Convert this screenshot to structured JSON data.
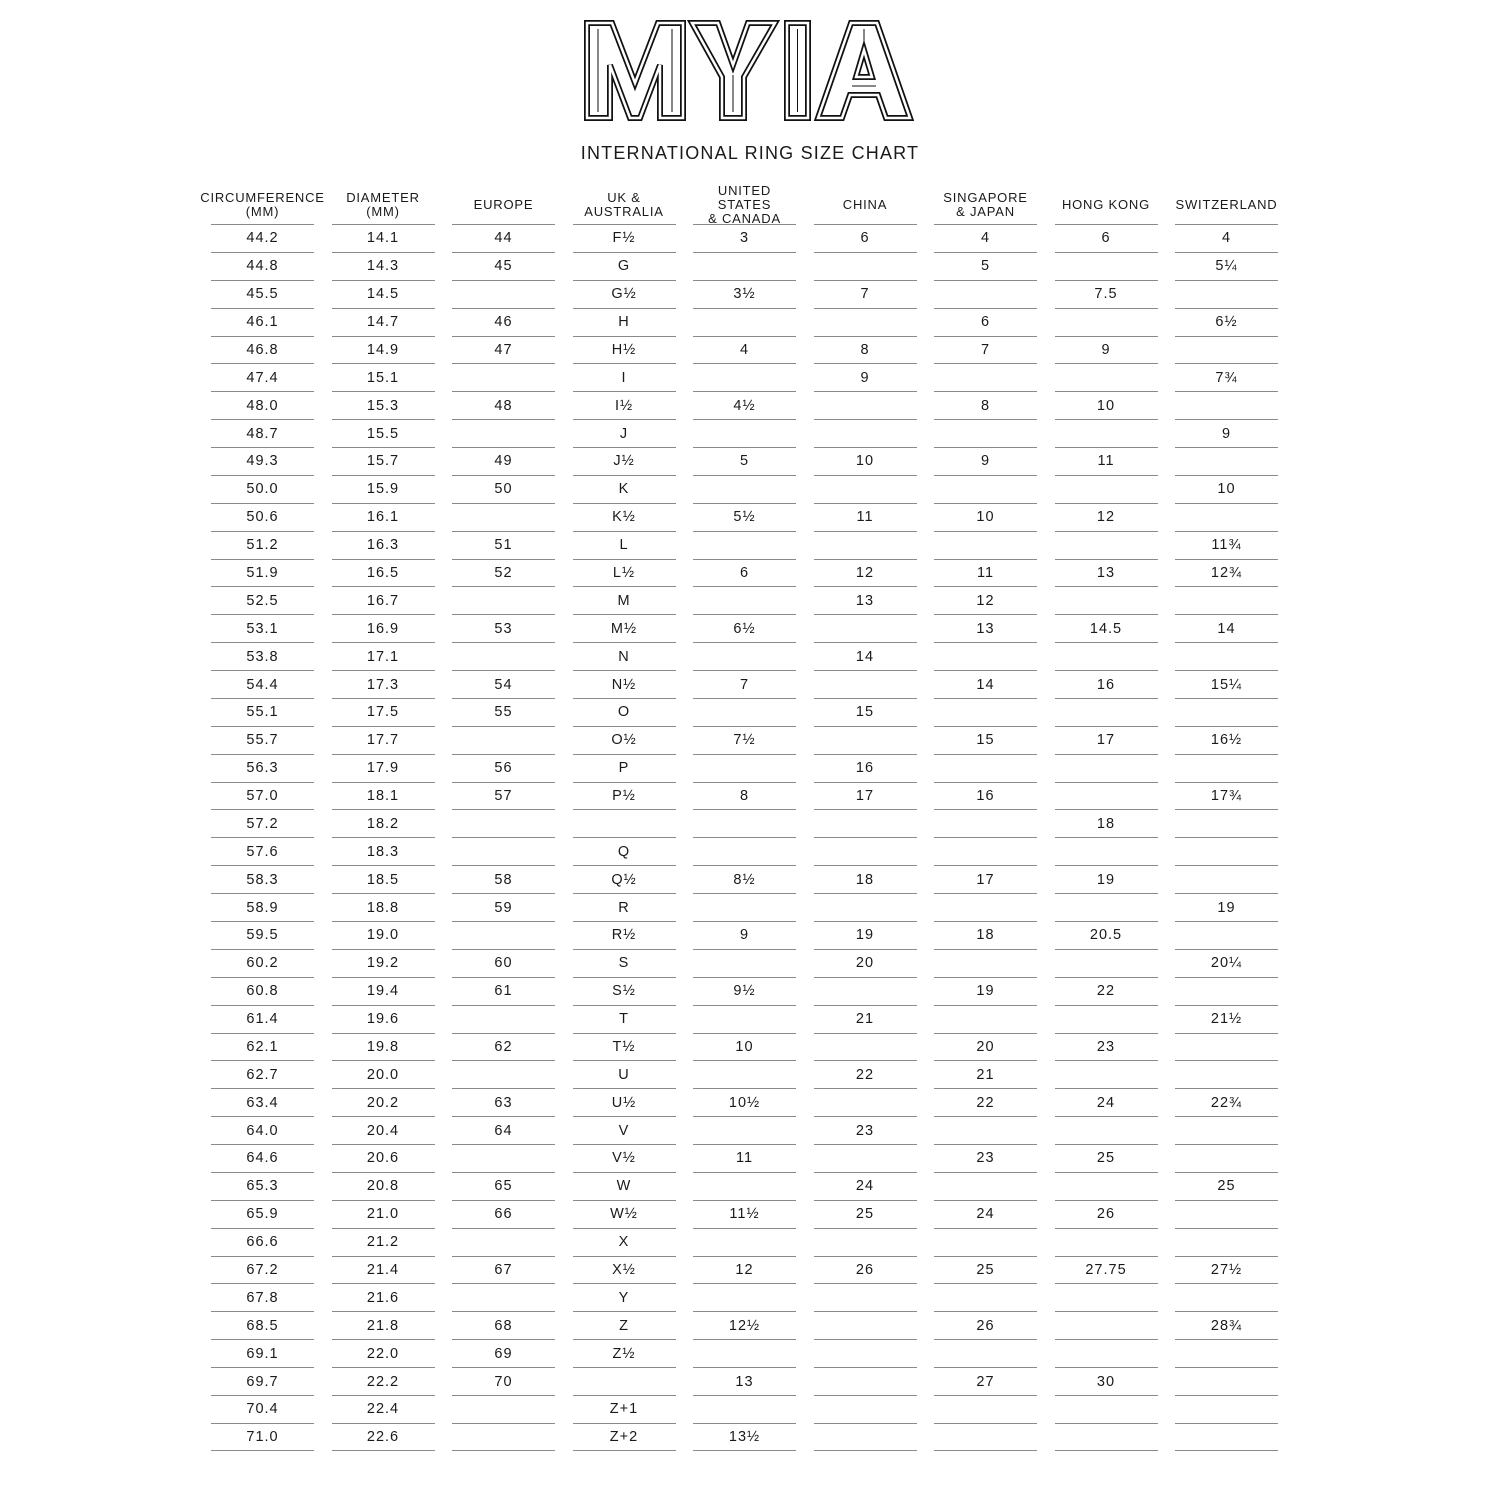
{
  "logo": {
    "text": "MYIA"
  },
  "title": "INTERNATIONAL RING SIZE CHART",
  "columns": [
    "CIRCUMFERENCE\n(MM)",
    "DIAMETER\n(MM)",
    "EUROPE",
    "UK &\nAUSTRALIA",
    "UNITED STATES\n& CANADA",
    "CHINA",
    "SINGAPORE\n& JAPAN",
    "HONG KONG",
    "SWITZERLAND"
  ],
  "rows": [
    [
      "44.2",
      "14.1",
      "44",
      "F½",
      "3",
      "6",
      "4",
      "6",
      "4"
    ],
    [
      "44.8",
      "14.3",
      "45",
      "G",
      "",
      "",
      "5",
      "",
      "5¼"
    ],
    [
      "45.5",
      "14.5",
      "",
      "G½",
      "3½",
      "7",
      "",
      "7.5",
      ""
    ],
    [
      "46.1",
      "14.7",
      "46",
      "H",
      "",
      "",
      "6",
      "",
      "6½"
    ],
    [
      "46.8",
      "14.9",
      "47",
      "H½",
      "4",
      "8",
      "7",
      "9",
      ""
    ],
    [
      "47.4",
      "15.1",
      "",
      "I",
      "",
      "9",
      "",
      "",
      "7¾"
    ],
    [
      "48.0",
      "15.3",
      "48",
      "I½",
      "4½",
      "",
      "8",
      "10",
      ""
    ],
    [
      "48.7",
      "15.5",
      "",
      "J",
      "",
      "",
      "",
      "",
      "9"
    ],
    [
      "49.3",
      "15.7",
      "49",
      "J½",
      "5",
      "10",
      "9",
      "11",
      ""
    ],
    [
      "50.0",
      "15.9",
      "50",
      "K",
      "",
      "",
      "",
      "",
      "10"
    ],
    [
      "50.6",
      "16.1",
      "",
      "K½",
      "5½",
      "11",
      "10",
      "12",
      ""
    ],
    [
      "51.2",
      "16.3",
      "51",
      "L",
      "",
      "",
      "",
      "",
      "11¾"
    ],
    [
      "51.9",
      "16.5",
      "52",
      "L½",
      "6",
      "12",
      "11",
      "13",
      "12¾"
    ],
    [
      "52.5",
      "16.7",
      "",
      "M",
      "",
      "13",
      "12",
      "",
      ""
    ],
    [
      "53.1",
      "16.9",
      "53",
      "M½",
      "6½",
      "",
      "13",
      "14.5",
      "14"
    ],
    [
      "53.8",
      "17.1",
      "",
      "N",
      "",
      "14",
      "",
      "",
      ""
    ],
    [
      "54.4",
      "17.3",
      "54",
      "N½",
      "7",
      "",
      "14",
      "16",
      "15¼"
    ],
    [
      "55.1",
      "17.5",
      "55",
      "O",
      "",
      "15",
      "",
      "",
      ""
    ],
    [
      "55.7",
      "17.7",
      "",
      "O½",
      "7½",
      "",
      "15",
      "17",
      "16½"
    ],
    [
      "56.3",
      "17.9",
      "56",
      "P",
      "",
      "16",
      "",
      "",
      ""
    ],
    [
      "57.0",
      "18.1",
      "57",
      "P½",
      "8",
      "17",
      "16",
      "",
      "17¾"
    ],
    [
      "57.2",
      "18.2",
      "",
      "",
      "",
      "",
      "",
      "18",
      ""
    ],
    [
      "57.6",
      "18.3",
      "",
      "Q",
      "",
      "",
      "",
      "",
      ""
    ],
    [
      "58.3",
      "18.5",
      "58",
      "Q½",
      "8½",
      "18",
      "17",
      "19",
      ""
    ],
    [
      "58.9",
      "18.8",
      "59",
      "R",
      "",
      "",
      "",
      "",
      "19"
    ],
    [
      "59.5",
      "19.0",
      "",
      "R½",
      "9",
      "19",
      "18",
      "20.5",
      ""
    ],
    [
      "60.2",
      "19.2",
      "60",
      "S",
      "",
      "20",
      "",
      "",
      "20¼"
    ],
    [
      "60.8",
      "19.4",
      "61",
      "S½",
      "9½",
      "",
      "19",
      "22",
      ""
    ],
    [
      "61.4",
      "19.6",
      "",
      "T",
      "",
      "21",
      "",
      "",
      "21½"
    ],
    [
      "62.1",
      "19.8",
      "62",
      "T½",
      "10",
      "",
      "20",
      "23",
      ""
    ],
    [
      "62.7",
      "20.0",
      "",
      "U",
      "",
      "22",
      "21",
      "",
      ""
    ],
    [
      "63.4",
      "20.2",
      "63",
      "U½",
      "10½",
      "",
      "22",
      "24",
      "22¾"
    ],
    [
      "64.0",
      "20.4",
      "64",
      "V",
      "",
      "23",
      "",
      "",
      ""
    ],
    [
      "64.6",
      "20.6",
      "",
      "V½",
      "11",
      "",
      "23",
      "25",
      ""
    ],
    [
      "65.3",
      "20.8",
      "65",
      "W",
      "",
      "24",
      "",
      "",
      "25"
    ],
    [
      "65.9",
      "21.0",
      "66",
      "W½",
      "11½",
      "25",
      "24",
      "26",
      ""
    ],
    [
      "66.6",
      "21.2",
      "",
      "X",
      "",
      "",
      "",
      "",
      ""
    ],
    [
      "67.2",
      "21.4",
      "67",
      "X½",
      "12",
      "26",
      "25",
      "27.75",
      "27½"
    ],
    [
      "67.8",
      "21.6",
      "",
      "Y",
      "",
      "",
      "",
      "",
      ""
    ],
    [
      "68.5",
      "21.8",
      "68",
      "Z",
      "12½",
      "",
      "26",
      "",
      "28¾"
    ],
    [
      "69.1",
      "22.0",
      "69",
      "Z½",
      "",
      "",
      "",
      "",
      ""
    ],
    [
      "69.7",
      "22.2",
      "70",
      "",
      "13",
      "",
      "27",
      "30",
      ""
    ],
    [
      "70.4",
      "22.4",
      "",
      "Z+1",
      "",
      "",
      "",
      "",
      ""
    ],
    [
      "71.0",
      "22.6",
      "",
      "Z+2",
      "13½",
      "",
      "",
      "",
      ""
    ]
  ]
}
